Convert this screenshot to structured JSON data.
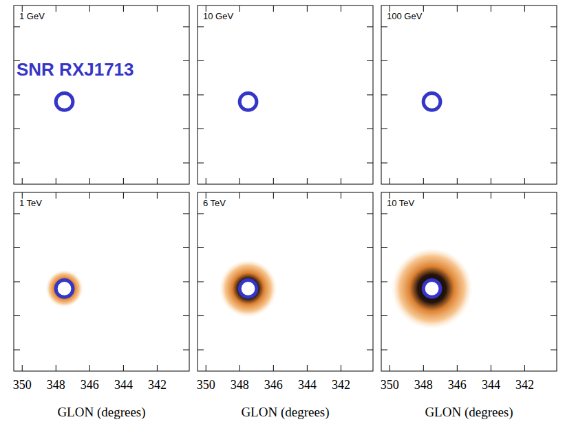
{
  "chart_data": [
    {
      "type": "map",
      "title": "1 GeV",
      "xlim": [
        350.5,
        340.1
      ],
      "ylim": [
        -5.25,
        5.25
      ],
      "xticks": [
        350,
        348,
        346,
        344,
        342
      ],
      "yticks": [
        -4,
        -2,
        0,
        2,
        4
      ],
      "tick_labels": false,
      "source": {
        "name": "SNR RXJ1713",
        "x": 347.5,
        "y": -0.4,
        "radius": 0.5,
        "color": "#3535c8"
      },
      "emission_radius": 0
    },
    {
      "type": "map",
      "title": "10 GeV",
      "xlim": [
        350.5,
        340.1
      ],
      "ylim": [
        -5.25,
        5.25
      ],
      "xticks": [
        350,
        348,
        346,
        344,
        342
      ],
      "yticks": [
        -4,
        -2,
        0,
        2,
        4
      ],
      "tick_labels": false,
      "source": {
        "x": 347.5,
        "y": -0.4,
        "radius": 0.5,
        "color": "#3535c8"
      },
      "emission_radius": 0
    },
    {
      "type": "map",
      "title": "100 GeV",
      "xlim": [
        350.5,
        340.1
      ],
      "ylim": [
        -5.25,
        5.25
      ],
      "xticks": [
        350,
        348,
        346,
        344,
        342
      ],
      "yticks": [
        -4,
        -2,
        0,
        2,
        4
      ],
      "tick_labels": false,
      "source": {
        "x": 347.5,
        "y": -0.4,
        "radius": 0.5,
        "color": "#3535c8"
      },
      "emission_radius": 0
    },
    {
      "type": "map",
      "title": "1 TeV",
      "xlabel": "GLON (degrees)",
      "xlim": [
        350.5,
        340.1
      ],
      "ylim": [
        -5.25,
        5.25
      ],
      "xticks": [
        350,
        348,
        346,
        344,
        342
      ],
      "yticks": [
        -4,
        -2,
        0,
        2,
        4
      ],
      "tick_labels": "x",
      "source": {
        "x": 347.5,
        "y": -0.4,
        "radius": 0.5,
        "color": "#3535c8"
      },
      "emission_radius": 1.1
    },
    {
      "type": "map",
      "title": "6 TeV",
      "xlabel": "GLON (degrees)",
      "xlim": [
        350.5,
        340.1
      ],
      "ylim": [
        -5.25,
        5.25
      ],
      "xticks": [
        350,
        348,
        346,
        344,
        342
      ],
      "yticks": [
        -4,
        -2,
        0,
        2,
        4
      ],
      "tick_labels": "x",
      "source": {
        "x": 347.5,
        "y": -0.4,
        "radius": 0.5,
        "color": "#3535c8"
      },
      "emission_radius": 1.7
    },
    {
      "type": "map",
      "title": "10 TeV",
      "xlabel": "GLON (degrees)",
      "xlim": [
        350.5,
        340.1
      ],
      "ylim": [
        -5.25,
        5.25
      ],
      "xticks": [
        350,
        348,
        346,
        344,
        342
      ],
      "yticks": [
        -4,
        -2,
        0,
        2,
        4
      ],
      "tick_labels": "x",
      "source": {
        "x": 347.5,
        "y": -0.4,
        "radius": 0.5,
        "color": "#3535c8"
      },
      "emission_radius": 2.4
    }
  ]
}
